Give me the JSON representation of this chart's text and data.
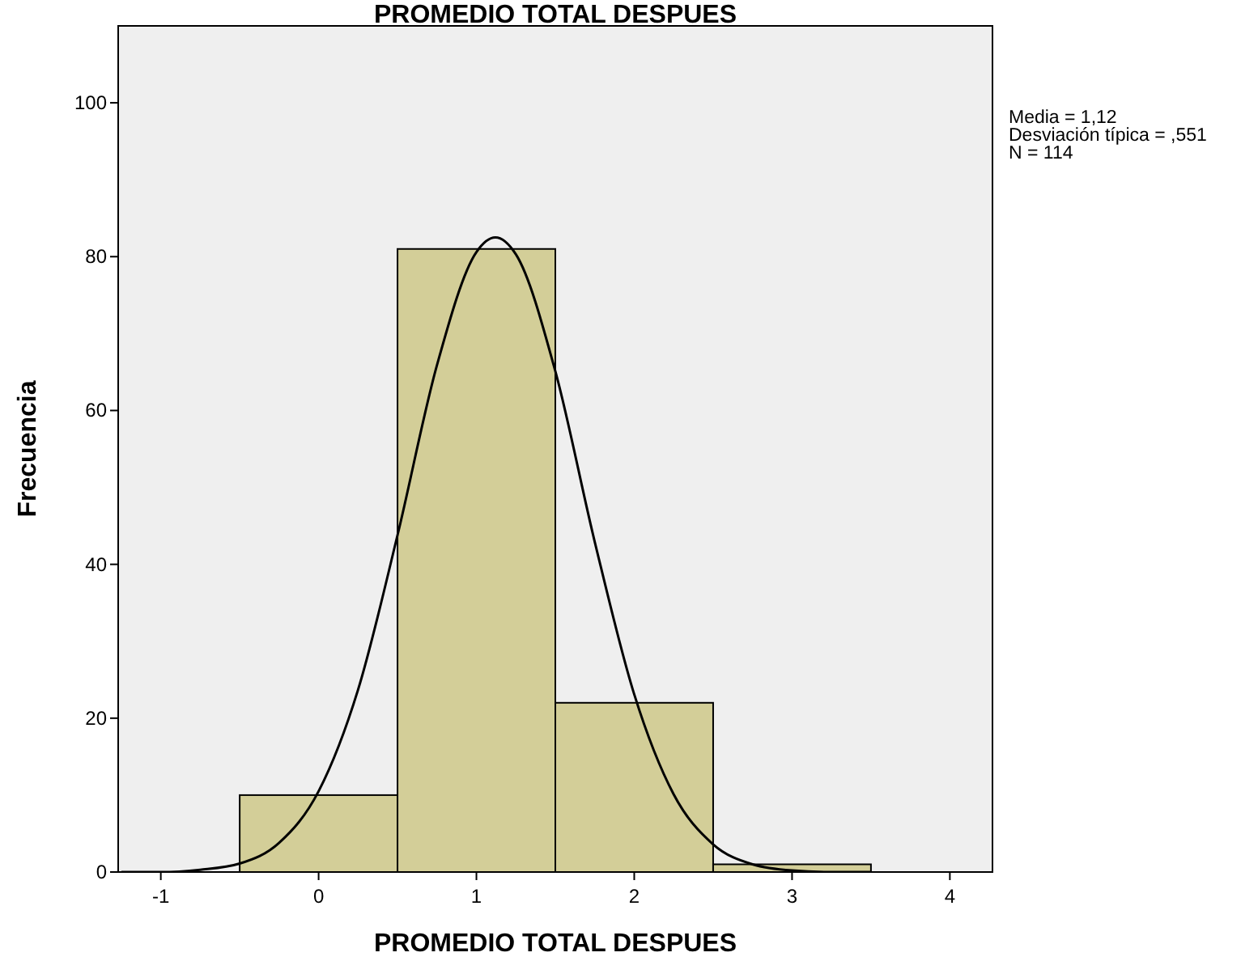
{
  "chart_data": {
    "type": "histogram",
    "title": "PROMEDIO TOTAL DESPUES",
    "xlabel": "PROMEDIO TOTAL DESPUES",
    "ylabel": "Frecuencia",
    "bins": [
      -0.5,
      0.5,
      1.5,
      2.5,
      3.5
    ],
    "values": [
      10,
      81,
      22,
      1
    ],
    "color": "#d3ce98",
    "series": [
      {
        "type": "line",
        "color": "#000000",
        "x": [
          -1.25,
          -1,
          -0.75,
          -0.5,
          -0.25,
          0,
          0.25,
          0.5,
          0.75,
          1,
          1.12,
          1.25,
          1.5,
          1.75,
          2,
          2.25,
          2.5,
          2.75,
          3,
          3.25,
          3.5
        ],
        "values": [
          0,
          0,
          0.3,
          1.1,
          3.8,
          10.5,
          23.7,
          43.8,
          65.9,
          80.6,
          82.5,
          80.3,
          65.1,
          42.9,
          23.1,
          10.1,
          3.6,
          1,
          0.2,
          0,
          0
        ]
      }
    ],
    "xlim": [
      -1.27,
      4.27
    ],
    "xticks": [
      -1,
      0,
      1,
      2,
      3,
      4
    ],
    "ylim": [
      0,
      110
    ],
    "yticks": [
      0,
      20,
      40,
      60,
      80,
      100
    ],
    "annotations": [
      "Media = 1,12",
      "Desviación típica = ,551",
      "N = 114"
    ]
  }
}
